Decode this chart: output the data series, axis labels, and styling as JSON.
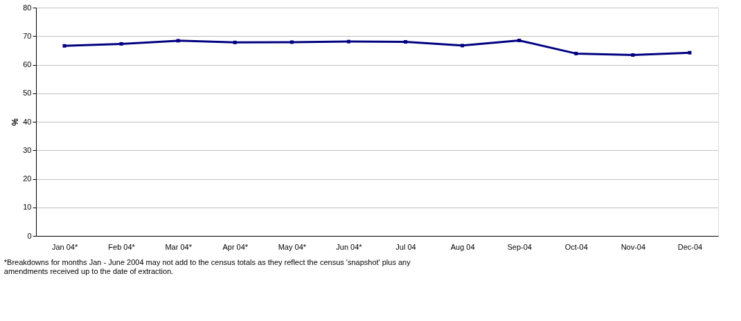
{
  "chart_data": {
    "type": "line",
    "ylabel": "%",
    "categories": [
      "Jan 04*",
      "Feb 04*",
      "Mar 04*",
      "Apr 04*",
      "May 04*",
      "Jun 04*",
      "Jul 04",
      "Aug 04",
      "Sep-04",
      "Oct-04",
      "Nov-04",
      "Dec-04"
    ],
    "series": [
      {
        "color": "#000080",
        "values": [
          66.6,
          67.3,
          68.4,
          67.8,
          67.9,
          68.1,
          68.0,
          66.7,
          68.5,
          63.9,
          63.4,
          64.2
        ]
      }
    ],
    "ylim": [
      0,
      80
    ],
    "yticks": [
      0,
      10,
      20,
      30,
      40,
      50,
      60,
      70,
      80
    ],
    "grid": "y",
    "marker": "square",
    "line_style": "solid",
    "annotations": [
      "*Breakdowns for months Jan - June 2004 may not add to the census totals as they reflect the census 'snapshot' plus any amendments received up to the date of extraction."
    ]
  }
}
